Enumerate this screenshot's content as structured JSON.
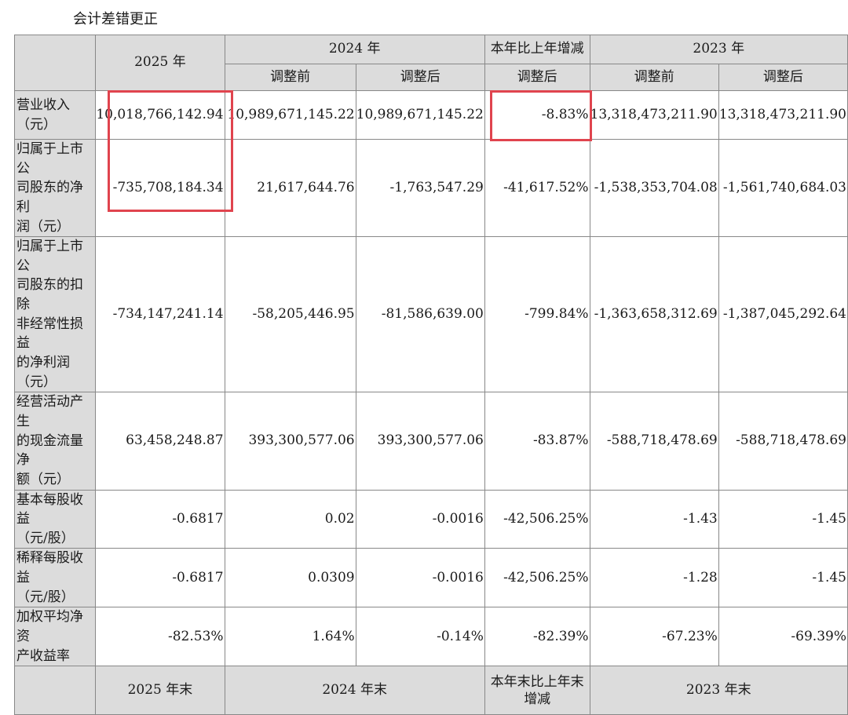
{
  "caption": "会计差错更正",
  "header": {
    "col_2025": "2025 年",
    "col_2024": "2024 年",
    "col_change": "本年比上年增减",
    "col_2023": "2023 年",
    "before": "调整前",
    "after": "调整后",
    "after_change": "调整后"
  },
  "rows": [
    {
      "label_lines": [
        "营业收入",
        "（元）"
      ],
      "values": [
        "10,018,766,142.94",
        "10,989,671,145.22",
        "10,989,671,145.22",
        "-8.83%",
        "13,318,473,211.90",
        "13,318,473,211.90"
      ]
    },
    {
      "label_lines": [
        "归属于上市公",
        "司股东的净利",
        "润（元）"
      ],
      "values": [
        "-735,708,184.34",
        "21,617,644.76",
        "-1,763,547.29",
        "-41,617.52%",
        "-1,538,353,704.08",
        "-1,561,740,684.03"
      ]
    },
    {
      "label_lines": [
        "归属于上市公",
        "司股东的扣除",
        "非经常性损益",
        "的净利润",
        "（元）"
      ],
      "values": [
        "-734,147,241.14",
        "-58,205,446.95",
        "-81,586,639.00",
        "-799.84%",
        "-1,363,658,312.69",
        "-1,387,045,292.64"
      ]
    },
    {
      "label_lines": [
        "经营活动产生",
        "的现金流量净",
        "额（元）"
      ],
      "values": [
        "63,458,248.87",
        "393,300,577.06",
        "393,300,577.06",
        "-83.87%",
        "-588,718,478.69",
        "-588,718,478.69"
      ]
    },
    {
      "label_lines": [
        "基本每股收益",
        "（元/股）"
      ],
      "values": [
        "-0.6817",
        "0.02",
        "-0.0016",
        "-42,506.25%",
        "-1.43",
        "-1.45"
      ]
    },
    {
      "label_lines": [
        "稀释每股收益",
        "（元/股）"
      ],
      "values": [
        "-0.6817",
        "0.0309",
        "-0.0016",
        "-42,506.25%",
        "-1.28",
        "-1.45"
      ]
    },
    {
      "label_lines": [
        "加权平均净资",
        "产收益率"
      ],
      "values": [
        "-82.53%",
        "1.64%",
        "-0.14%",
        "-82.39%",
        "-67.23%",
        "-69.39%"
      ]
    }
  ],
  "footer": {
    "end_2025": "2025 年末",
    "end_2024": "2024 年末",
    "end_change_lines": [
      "本年末比上年末",
      "增减"
    ],
    "end_2023": "2023 年末"
  },
  "highlight_color": "#e0444e"
}
